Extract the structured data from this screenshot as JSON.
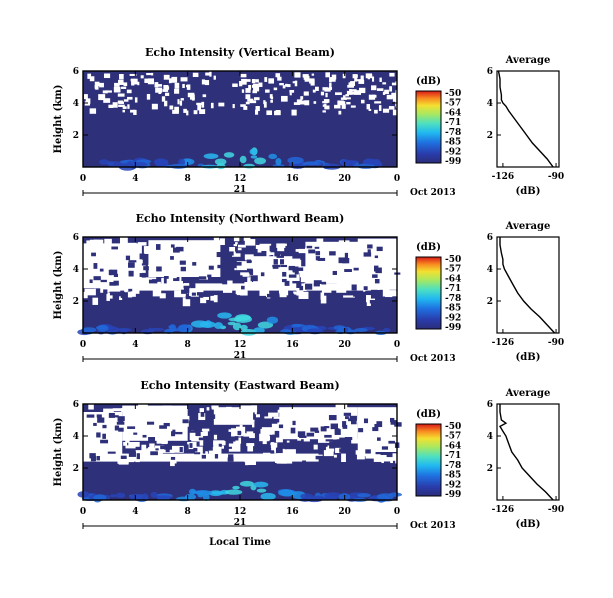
{
  "chart_data": [
    {
      "type": "heatmap",
      "title": "Echo Intensity (Vertical Beam)",
      "ylabel": "Height (km)",
      "xlim": [
        0,
        24
      ],
      "ylim": [
        0,
        6
      ],
      "x_ticks": [
        "0",
        "4",
        "8",
        "12",
        "16",
        "20",
        "0"
      ],
      "y_ticks": [
        "2",
        "4",
        "6"
      ],
      "date_day": "21",
      "date_month": "Oct 2013",
      "colorbar_label": "(dB)",
      "colorbar_ticks": [
        "-50",
        "-57",
        "-64",
        "-71",
        "-78",
        "-85",
        "-92",
        "-99"
      ],
      "colorbar_range": [
        -99,
        -50
      ],
      "white_gaps_above_km": 3.5,
      "enhanced_echo_hours": [
        9,
        15
      ],
      "profile": {
        "title": "Average",
        "xlabel": "(dB)",
        "x_ticks": [
          "-126",
          "-90"
        ],
        "xlim": [
          -130,
          -88
        ],
        "y_ticks": [
          "2",
          "4",
          "6"
        ],
        "ylim": [
          0,
          6
        ],
        "height_km": [
          0.0,
          0.5,
          1.0,
          1.5,
          2.0,
          2.5,
          3.0,
          3.5,
          3.8,
          4.0,
          4.2,
          4.5,
          5.0,
          5.5,
          6.0
        ],
        "db": [
          -92,
          -96,
          -101,
          -106,
          -110,
          -114,
          -118,
          -122,
          -124,
          -126,
          -127,
          -127,
          -128,
          -128,
          -129
        ]
      }
    },
    {
      "type": "heatmap",
      "title": "Echo Intensity (Northward Beam)",
      "ylabel": "Height (km)",
      "xlim": [
        0,
        24
      ],
      "ylim": [
        0,
        6
      ],
      "x_ticks": [
        "0",
        "4",
        "8",
        "12",
        "16",
        "20",
        "0"
      ],
      "y_ticks": [
        "2",
        "4",
        "6"
      ],
      "date_day": "21",
      "date_month": "Oct 2013",
      "colorbar_label": "(dB)",
      "colorbar_ticks": [
        "-50",
        "-57",
        "-64",
        "-71",
        "-78",
        "-85",
        "-92",
        "-99"
      ],
      "colorbar_range": [
        -99,
        -50
      ],
      "white_gaps_above_km": 2.2,
      "enhanced_echo_hours": [
        9,
        15
      ],
      "profile": {
        "title": "Average",
        "xlabel": "(dB)",
        "x_ticks": [
          "-126",
          "-90"
        ],
        "xlim": [
          -130,
          -88
        ],
        "y_ticks": [
          "2",
          "4",
          "6"
        ],
        "ylim": [
          0,
          6
        ],
        "height_km": [
          0.0,
          0.5,
          1.0,
          1.5,
          2.0,
          2.5,
          3.0,
          3.5,
          4.0,
          4.3,
          4.6,
          5.0,
          5.5,
          6.0
        ],
        "db": [
          -91,
          -96,
          -101,
          -107,
          -112,
          -116,
          -119,
          -122,
          -125,
          -126,
          -126,
          -127,
          -128,
          -128
        ]
      }
    },
    {
      "type": "heatmap",
      "title": "Echo Intensity (Eastward Beam)",
      "ylabel": "Height (km)",
      "xlabel": "Local Time",
      "xlim": [
        0,
        24
      ],
      "ylim": [
        0,
        6
      ],
      "x_ticks": [
        "0",
        "4",
        "8",
        "12",
        "16",
        "20",
        "0"
      ],
      "y_ticks": [
        "2",
        "4",
        "6"
      ],
      "date_day": "21",
      "date_month": "Oct 2013",
      "colorbar_label": "(dB)",
      "colorbar_ticks": [
        "-50",
        "-57",
        "-64",
        "-71",
        "-78",
        "-85",
        "-92",
        "-99"
      ],
      "colorbar_range": [
        -99,
        -50
      ],
      "white_gaps_above_km": 2.6,
      "enhanced_echo_hours": [
        9,
        15
      ],
      "profile": {
        "title": "Average",
        "xlabel": "(dB)",
        "x_ticks": [
          "-126",
          "-90"
        ],
        "xlim": [
          -130,
          -88
        ],
        "y_ticks": [
          "2",
          "4",
          "6"
        ],
        "ylim": [
          0,
          6
        ],
        "height_km": [
          0.0,
          0.5,
          1.0,
          1.5,
          2.0,
          2.5,
          3.0,
          3.5,
          4.0,
          4.3,
          4.6,
          4.8,
          5.0,
          5.5,
          6.0
        ],
        "db": [
          -92,
          -97,
          -103,
          -108,
          -113,
          -116,
          -120,
          -122,
          -124,
          -126,
          -128,
          -124,
          -127,
          -128,
          -128
        ]
      }
    }
  ]
}
